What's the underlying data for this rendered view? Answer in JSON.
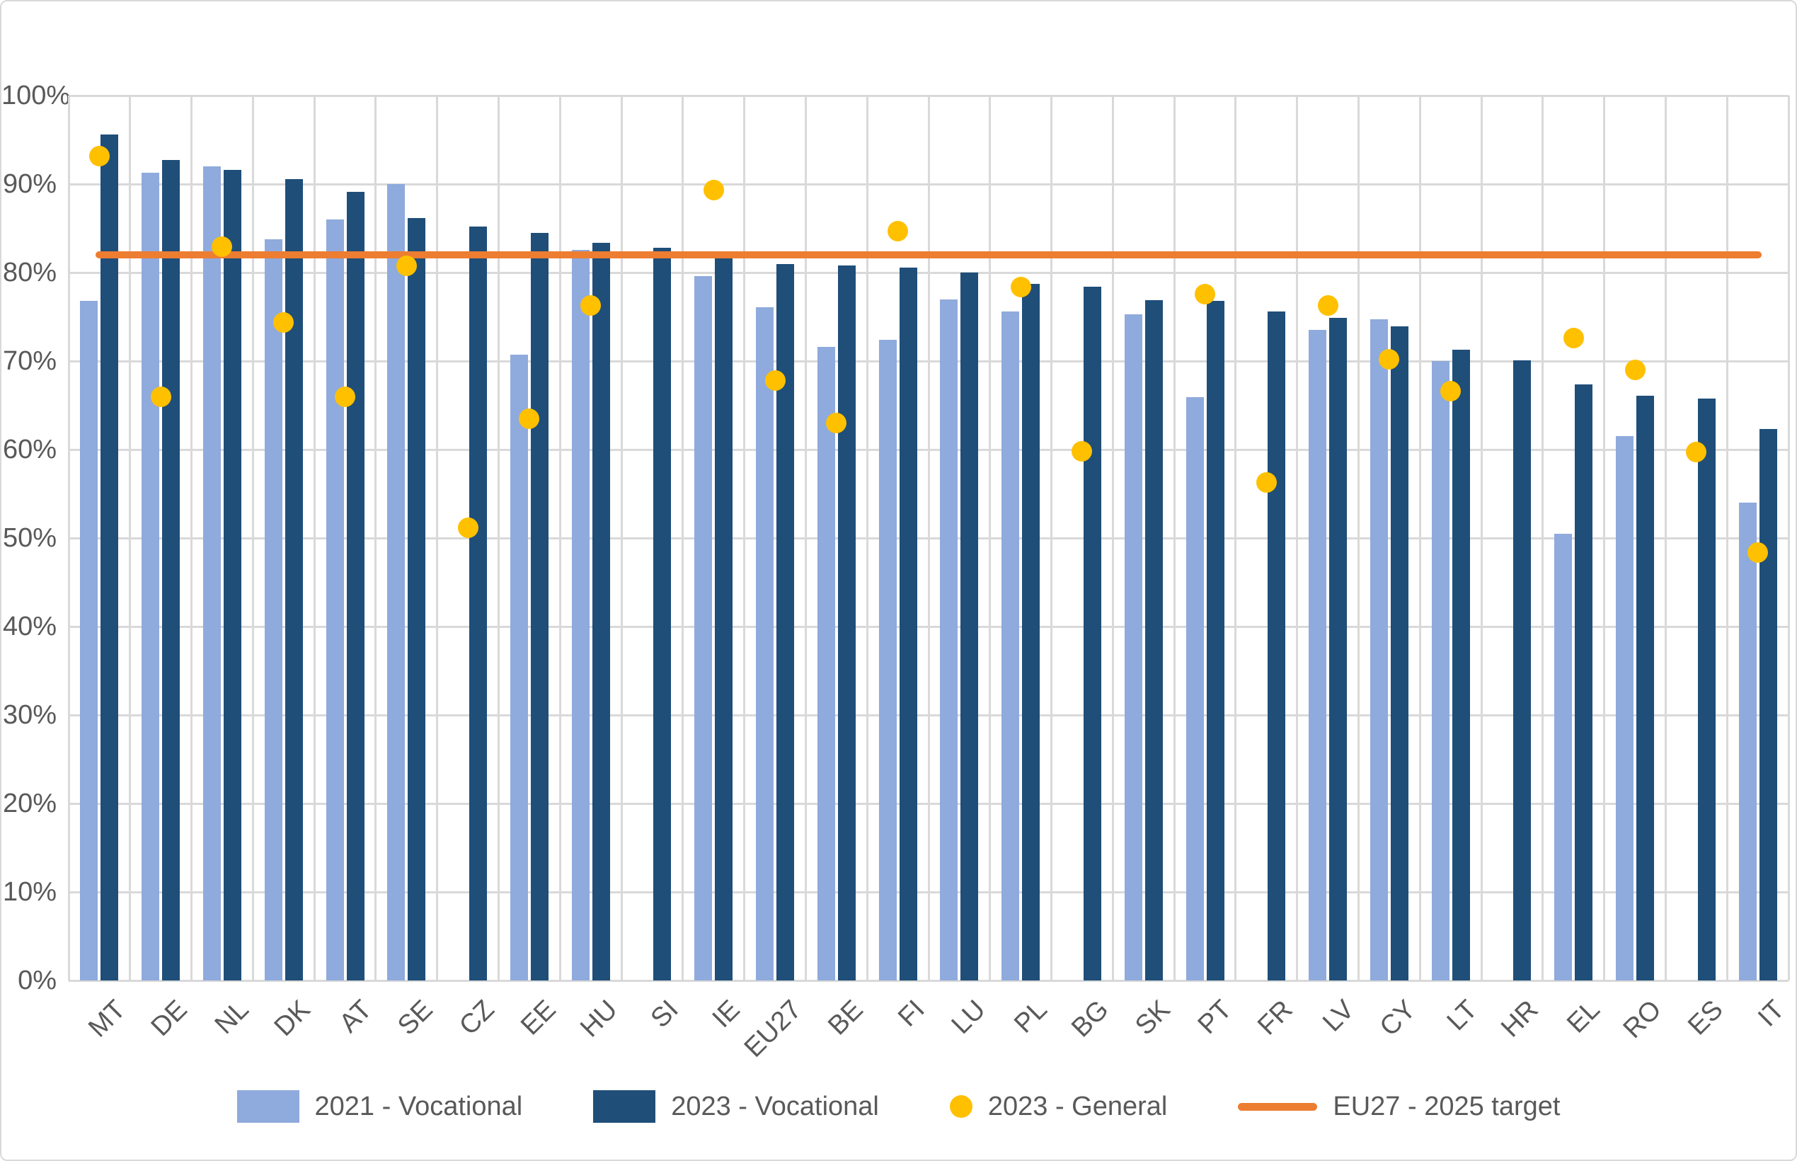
{
  "chart_data": {
    "type": "bar",
    "title": "",
    "xlabel": "",
    "ylabel": "",
    "ylim": [
      0,
      100
    ],
    "ytick_step": 10,
    "y_tick_labels": [
      "0%",
      "10%",
      "20%",
      "30%",
      "40%",
      "50%",
      "60%",
      "70%",
      "80%",
      "90%",
      "100%"
    ],
    "grid": true,
    "legend_position": "bottom",
    "categories": [
      "MT",
      "DE",
      "NL",
      "DK",
      "AT",
      "SE",
      "CZ",
      "EE",
      "HU",
      "SI",
      "IE",
      "EU27",
      "BE",
      "FI",
      "LU",
      "PL",
      "BG",
      "SK",
      "PT",
      "FR",
      "LV",
      "CY",
      "LT",
      "HR",
      "EL",
      "RO",
      "ES",
      "IT"
    ],
    "series": [
      {
        "name": "2021 - Vocational",
        "type": "bar",
        "color": "#8FAADC",
        "values": [
          76.8,
          91.3,
          92.0,
          83.8,
          86.0,
          90.0,
          null,
          70.7,
          82.6,
          null,
          79.6,
          76.1,
          71.6,
          72.4,
          77.0,
          75.6,
          null,
          75.3,
          65.9,
          null,
          73.5,
          74.7,
          70.0,
          null,
          50.5,
          61.5,
          null,
          54.0
        ]
      },
      {
        "name": "2023 - Vocational",
        "type": "bar",
        "color": "#1F4E79",
        "values": [
          95.6,
          92.7,
          91.6,
          90.6,
          89.1,
          86.2,
          85.2,
          84.5,
          83.4,
          82.8,
          81.6,
          81.0,
          80.8,
          80.6,
          80.0,
          78.7,
          78.4,
          76.9,
          76.8,
          75.6,
          74.9,
          73.9,
          71.3,
          70.1,
          67.4,
          66.1,
          65.8,
          62.3
        ]
      },
      {
        "name": "2023 - General",
        "type": "scatter",
        "color": "#FFC000",
        "values": [
          93.2,
          66.0,
          82.9,
          74.4,
          66.0,
          80.8,
          51.2,
          63.5,
          76.3,
          null,
          89.3,
          67.8,
          63.0,
          84.7,
          null,
          78.4,
          59.8,
          null,
          77.6,
          56.3,
          76.3,
          70.2,
          66.6,
          null,
          72.6,
          69.0,
          59.7,
          48.4
        ]
      },
      {
        "name": "EU27 - 2025 target",
        "type": "line",
        "color": "#ED7D31",
        "value": 82
      }
    ],
    "grid_color": "#D9D9D9",
    "tick_label_color": "#595959"
  }
}
